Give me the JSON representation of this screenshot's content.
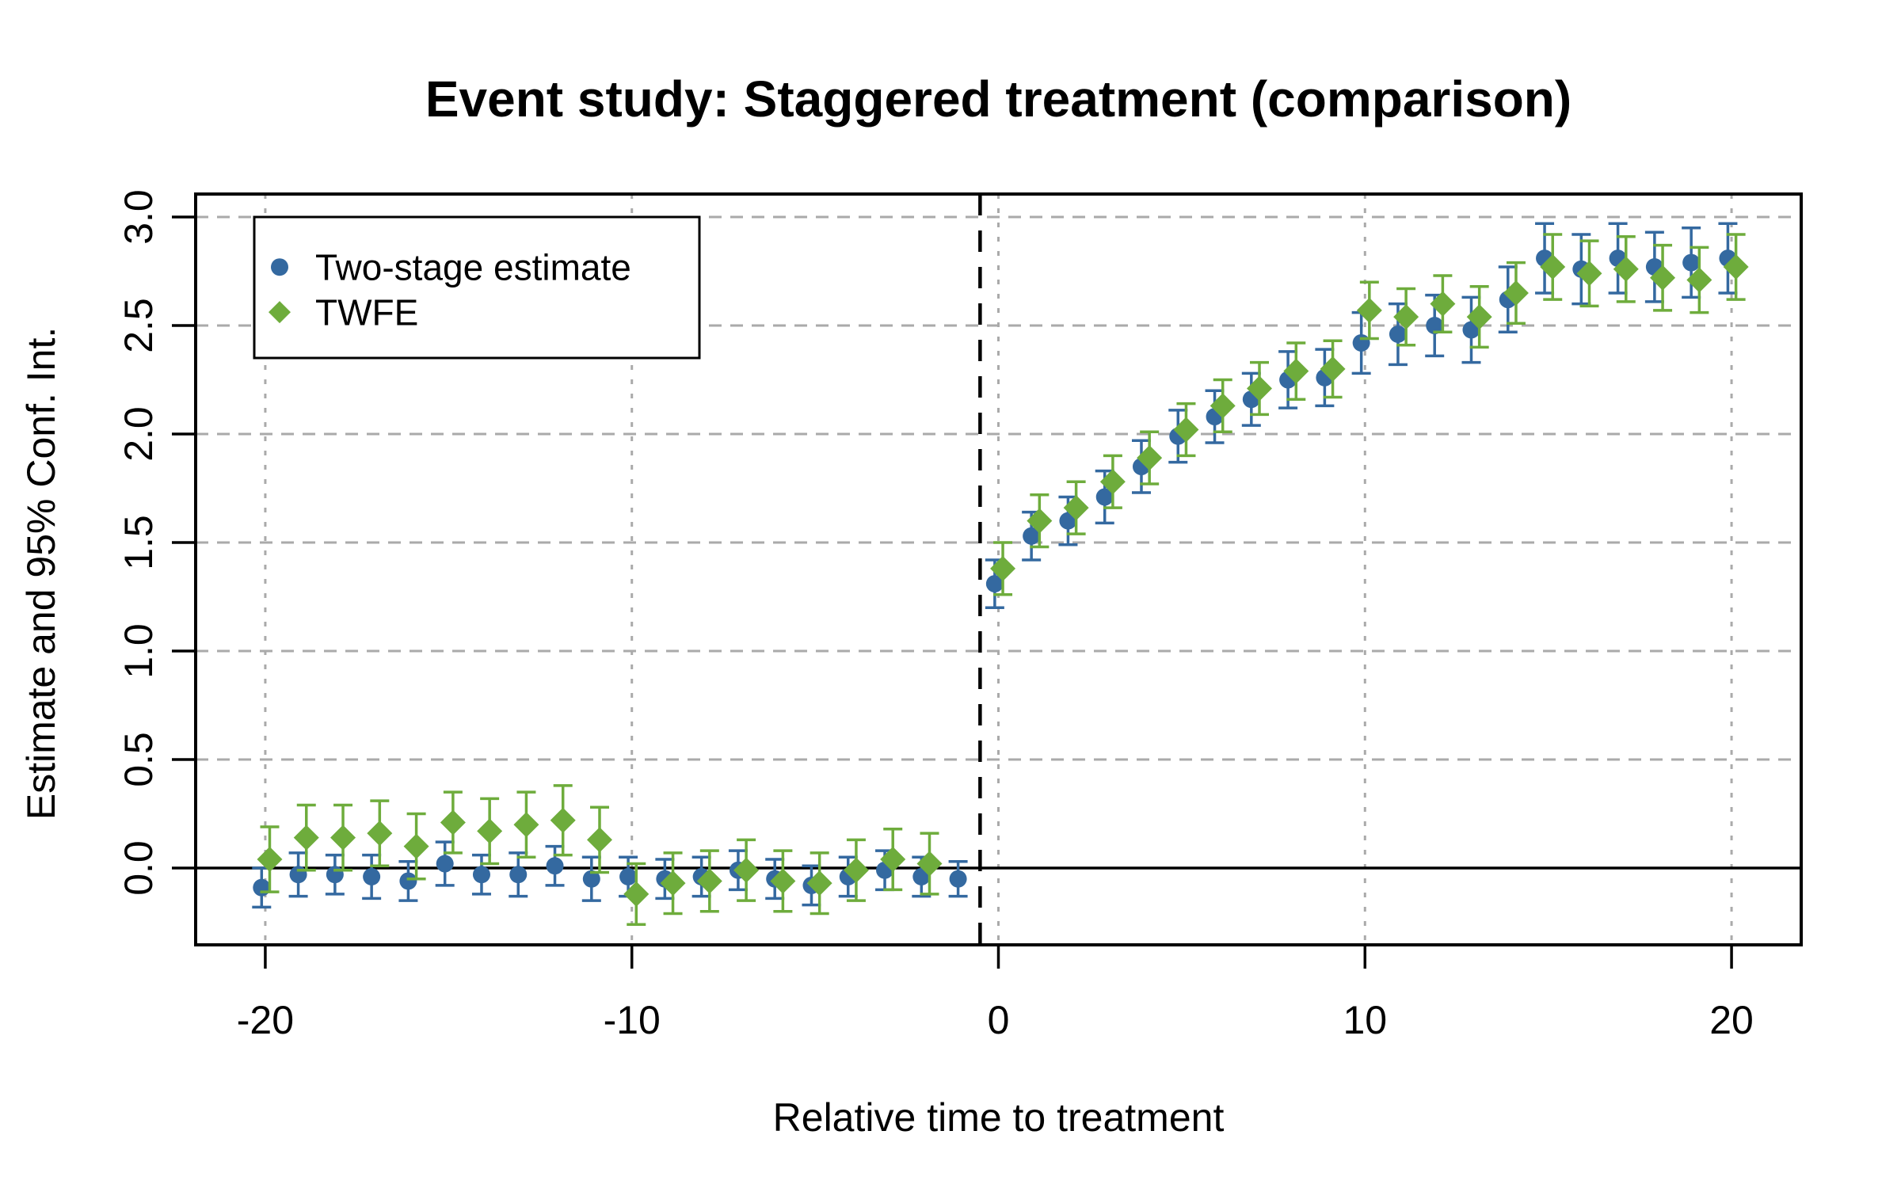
{
  "chart_data": {
    "type": "scatter",
    "title": "Event study: Staggered treatment (comparison)",
    "xlabel": "Relative time to treatment",
    "ylabel": "Estimate and 95% Conf. Int.",
    "x_ticks": [
      {
        "value": -20,
        "label": "-20"
      },
      {
        "value": -10,
        "label": "-10"
      },
      {
        "value": 0,
        "label": "0"
      },
      {
        "value": 10,
        "label": "10"
      },
      {
        "value": 20,
        "label": "20"
      }
    ],
    "y_ticks": [
      {
        "value": 0.0,
        "label": "0.0"
      },
      {
        "value": 0.5,
        "label": "0.5"
      },
      {
        "value": 1.0,
        "label": "1.0"
      },
      {
        "value": 1.5,
        "label": "1.5"
      },
      {
        "value": 2.0,
        "label": "2.0"
      },
      {
        "value": 2.5,
        "label": "2.5"
      },
      {
        "value": 3.0,
        "label": "3.0"
      }
    ],
    "xlim": [
      -21.9,
      21.9
    ],
    "ylim": [
      -0.354,
      3.106
    ],
    "grid": {
      "color": "#AAAAAA",
      "horizontal_style": "dashed",
      "vertical_style": "dotted"
    },
    "reference_lines": {
      "zero_line_y": 0,
      "treatment_line_x": -0.5,
      "color": "#000000"
    },
    "legend": {
      "position": "top-left"
    },
    "series": [
      {
        "name": "Two-stage estimate",
        "color": "#3469A0",
        "marker": "circle",
        "x_offset": -0.1,
        "points": [
          {
            "t": -20,
            "est": -0.09,
            "lo": -0.18,
            "hi": 0.0
          },
          {
            "t": -19,
            "est": -0.03,
            "lo": -0.13,
            "hi": 0.07
          },
          {
            "t": -18,
            "est": -0.03,
            "lo": -0.12,
            "hi": 0.06
          },
          {
            "t": -17,
            "est": -0.04,
            "lo": -0.14,
            "hi": 0.06
          },
          {
            "t": -16,
            "est": -0.06,
            "lo": -0.15,
            "hi": 0.03
          },
          {
            "t": -15,
            "est": 0.02,
            "lo": -0.08,
            "hi": 0.12
          },
          {
            "t": -14,
            "est": -0.03,
            "lo": -0.12,
            "hi": 0.06
          },
          {
            "t": -13,
            "est": -0.03,
            "lo": -0.13,
            "hi": 0.07
          },
          {
            "t": -12,
            "est": 0.01,
            "lo": -0.08,
            "hi": 0.1
          },
          {
            "t": -11,
            "est": -0.05,
            "lo": -0.15,
            "hi": 0.05
          },
          {
            "t": -10,
            "est": -0.04,
            "lo": -0.13,
            "hi": 0.05
          },
          {
            "t": -9,
            "est": -0.05,
            "lo": -0.14,
            "hi": 0.04
          },
          {
            "t": -8,
            "est": -0.04,
            "lo": -0.13,
            "hi": 0.05
          },
          {
            "t": -7,
            "est": -0.01,
            "lo": -0.1,
            "hi": 0.08
          },
          {
            "t": -6,
            "est": -0.05,
            "lo": -0.14,
            "hi": 0.04
          },
          {
            "t": -5,
            "est": -0.08,
            "lo": -0.17,
            "hi": 0.01
          },
          {
            "t": -4,
            "est": -0.04,
            "lo": -0.13,
            "hi": 0.05
          },
          {
            "t": -3,
            "est": -0.01,
            "lo": -0.1,
            "hi": 0.08
          },
          {
            "t": -2,
            "est": -0.04,
            "lo": -0.13,
            "hi": 0.05
          },
          {
            "t": -1,
            "est": -0.05,
            "lo": -0.13,
            "hi": 0.03
          },
          {
            "t": 0,
            "est": 1.31,
            "lo": 1.2,
            "hi": 1.42
          },
          {
            "t": 1,
            "est": 1.53,
            "lo": 1.42,
            "hi": 1.64
          },
          {
            "t": 2,
            "est": 1.6,
            "lo": 1.49,
            "hi": 1.71
          },
          {
            "t": 3,
            "est": 1.71,
            "lo": 1.59,
            "hi": 1.83
          },
          {
            "t": 4,
            "est": 1.85,
            "lo": 1.73,
            "hi": 1.97
          },
          {
            "t": 5,
            "est": 1.99,
            "lo": 1.87,
            "hi": 2.11
          },
          {
            "t": 6,
            "est": 2.08,
            "lo": 1.96,
            "hi": 2.2
          },
          {
            "t": 7,
            "est": 2.16,
            "lo": 2.04,
            "hi": 2.28
          },
          {
            "t": 8,
            "est": 2.25,
            "lo": 2.12,
            "hi": 2.38
          },
          {
            "t": 9,
            "est": 2.26,
            "lo": 2.13,
            "hi": 2.39
          },
          {
            "t": 10,
            "est": 2.42,
            "lo": 2.28,
            "hi": 2.56
          },
          {
            "t": 11,
            "est": 2.46,
            "lo": 2.32,
            "hi": 2.6
          },
          {
            "t": 12,
            "est": 2.5,
            "lo": 2.36,
            "hi": 2.64
          },
          {
            "t": 13,
            "est": 2.48,
            "lo": 2.33,
            "hi": 2.63
          },
          {
            "t": 14,
            "est": 2.62,
            "lo": 2.47,
            "hi": 2.77
          },
          {
            "t": 15,
            "est": 2.81,
            "lo": 2.65,
            "hi": 2.97
          },
          {
            "t": 16,
            "est": 2.76,
            "lo": 2.6,
            "hi": 2.92
          },
          {
            "t": 17,
            "est": 2.81,
            "lo": 2.65,
            "hi": 2.97
          },
          {
            "t": 18,
            "est": 2.77,
            "lo": 2.61,
            "hi": 2.93
          },
          {
            "t": 19,
            "est": 2.79,
            "lo": 2.63,
            "hi": 2.95
          },
          {
            "t": 20,
            "est": 2.81,
            "lo": 2.65,
            "hi": 2.97
          }
        ]
      },
      {
        "name": "TWFE",
        "color": "#6EAC3C",
        "marker": "diamond",
        "x_offset": 0.12,
        "points": [
          {
            "t": -20,
            "est": 0.04,
            "lo": -0.11,
            "hi": 0.19
          },
          {
            "t": -19,
            "est": 0.14,
            "lo": -0.01,
            "hi": 0.29
          },
          {
            "t": -18,
            "est": 0.14,
            "lo": -0.01,
            "hi": 0.29
          },
          {
            "t": -17,
            "est": 0.16,
            "lo": 0.01,
            "hi": 0.31
          },
          {
            "t": -16,
            "est": 0.1,
            "lo": -0.05,
            "hi": 0.25
          },
          {
            "t": -15,
            "est": 0.21,
            "lo": 0.07,
            "hi": 0.35
          },
          {
            "t": -14,
            "est": 0.17,
            "lo": 0.02,
            "hi": 0.32
          },
          {
            "t": -13,
            "est": 0.2,
            "lo": 0.05,
            "hi": 0.35
          },
          {
            "t": -12,
            "est": 0.22,
            "lo": 0.06,
            "hi": 0.38
          },
          {
            "t": -11,
            "est": 0.13,
            "lo": -0.02,
            "hi": 0.28
          },
          {
            "t": -10,
            "est": -0.12,
            "lo": -0.26,
            "hi": 0.02
          },
          {
            "t": -9,
            "est": -0.07,
            "lo": -0.21,
            "hi": 0.07
          },
          {
            "t": -8,
            "est": -0.06,
            "lo": -0.2,
            "hi": 0.08
          },
          {
            "t": -7,
            "est": -0.01,
            "lo": -0.15,
            "hi": 0.13
          },
          {
            "t": -6,
            "est": -0.06,
            "lo": -0.2,
            "hi": 0.08
          },
          {
            "t": -5,
            "est": -0.07,
            "lo": -0.21,
            "hi": 0.07
          },
          {
            "t": -4,
            "est": -0.01,
            "lo": -0.15,
            "hi": 0.13
          },
          {
            "t": -3,
            "est": 0.04,
            "lo": -0.1,
            "hi": 0.18
          },
          {
            "t": -2,
            "est": 0.02,
            "lo": -0.12,
            "hi": 0.16
          },
          {
            "t": 0,
            "est": 1.38,
            "lo": 1.26,
            "hi": 1.5
          },
          {
            "t": 1,
            "est": 1.6,
            "lo": 1.48,
            "hi": 1.72
          },
          {
            "t": 2,
            "est": 1.66,
            "lo": 1.54,
            "hi": 1.78
          },
          {
            "t": 3,
            "est": 1.78,
            "lo": 1.66,
            "hi": 1.9
          },
          {
            "t": 4,
            "est": 1.89,
            "lo": 1.77,
            "hi": 2.01
          },
          {
            "t": 5,
            "est": 2.02,
            "lo": 1.9,
            "hi": 2.14
          },
          {
            "t": 6,
            "est": 2.13,
            "lo": 2.01,
            "hi": 2.25
          },
          {
            "t": 7,
            "est": 2.21,
            "lo": 2.09,
            "hi": 2.33
          },
          {
            "t": 8,
            "est": 2.29,
            "lo": 2.16,
            "hi": 2.42
          },
          {
            "t": 9,
            "est": 2.3,
            "lo": 2.17,
            "hi": 2.43
          },
          {
            "t": 10,
            "est": 2.57,
            "lo": 2.44,
            "hi": 2.7
          },
          {
            "t": 11,
            "est": 2.54,
            "lo": 2.41,
            "hi": 2.67
          },
          {
            "t": 12,
            "est": 2.6,
            "lo": 2.47,
            "hi": 2.73
          },
          {
            "t": 13,
            "est": 2.54,
            "lo": 2.4,
            "hi": 2.68
          },
          {
            "t": 14,
            "est": 2.65,
            "lo": 2.51,
            "hi": 2.79
          },
          {
            "t": 15,
            "est": 2.77,
            "lo": 2.62,
            "hi": 2.92
          },
          {
            "t": 16,
            "est": 2.74,
            "lo": 2.59,
            "hi": 2.89
          },
          {
            "t": 17,
            "est": 2.76,
            "lo": 2.61,
            "hi": 2.91
          },
          {
            "t": 18,
            "est": 2.72,
            "lo": 2.57,
            "hi": 2.87
          },
          {
            "t": 19,
            "est": 2.71,
            "lo": 2.56,
            "hi": 2.86
          },
          {
            "t": 20,
            "est": 2.77,
            "lo": 2.62,
            "hi": 2.92
          }
        ]
      }
    ]
  }
}
